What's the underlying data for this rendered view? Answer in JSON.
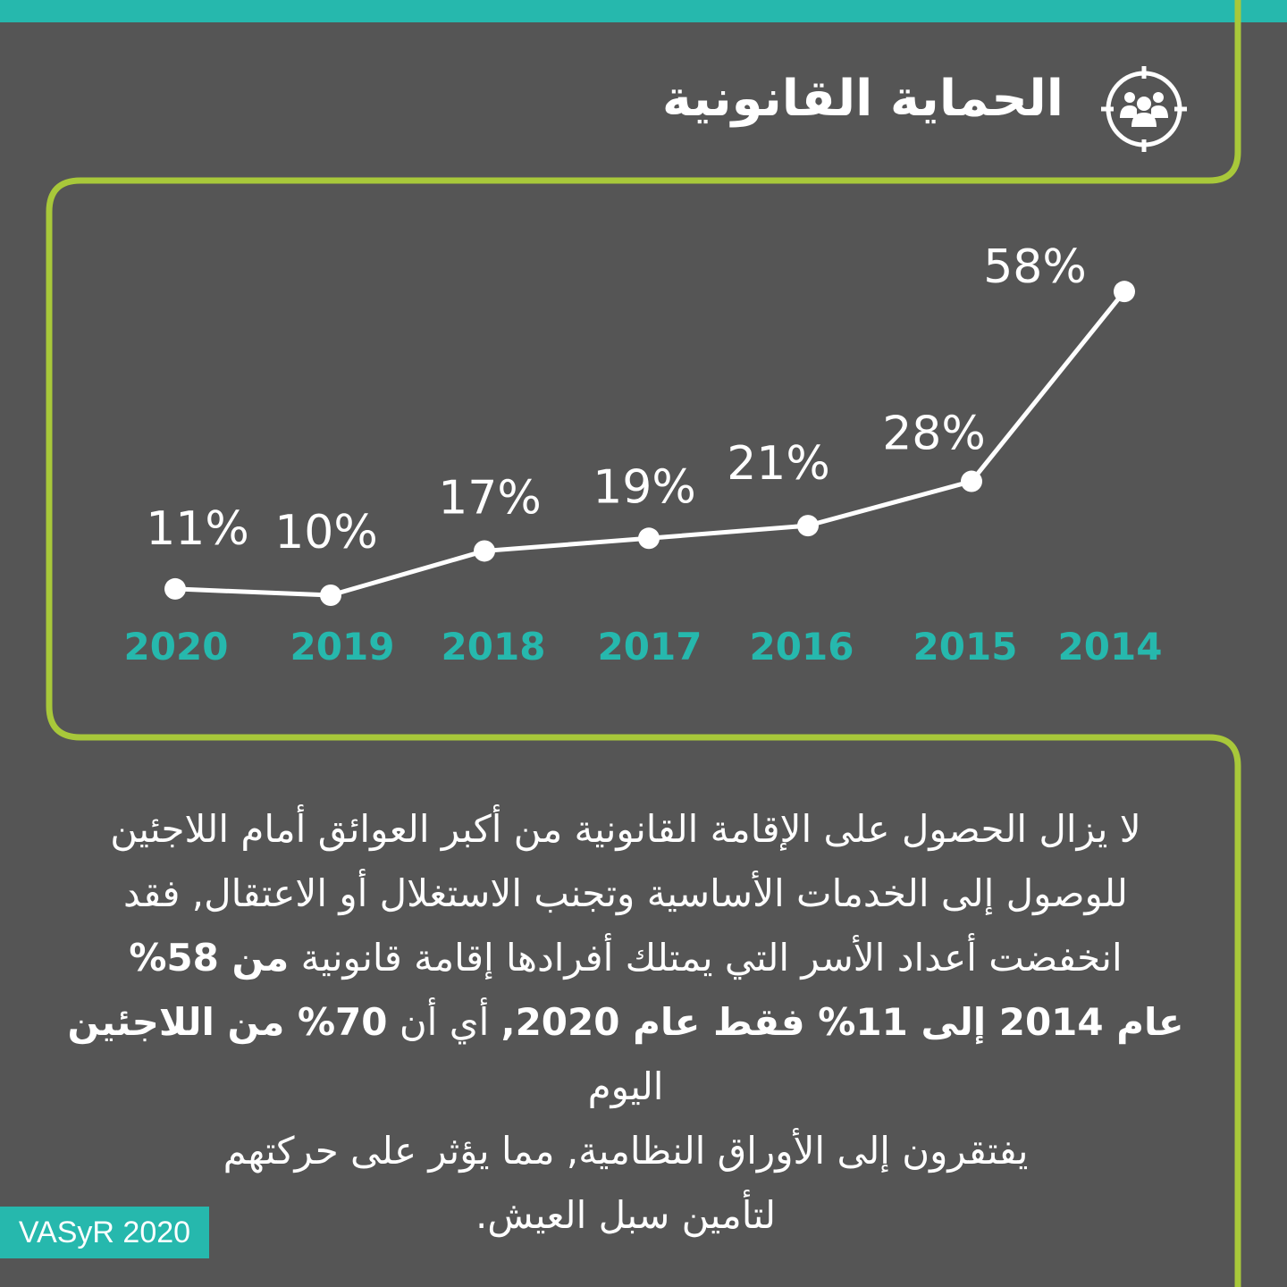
{
  "header": {
    "title": "الحماية القانونية",
    "icon": "group-target-icon"
  },
  "colors": {
    "background": "#555555",
    "accent_teal": "#26b8ad",
    "accent_green": "#a8c83a",
    "line": "#ffffff"
  },
  "chart_data": {
    "type": "line",
    "x": [
      "2020",
      "2019",
      "2018",
      "2017",
      "2016",
      "2015",
      "2014"
    ],
    "values": [
      11,
      10,
      17,
      19,
      21,
      28,
      58
    ],
    "value_labels": [
      "11%",
      "10%",
      "17%",
      "19%",
      "21%",
      "28%",
      "58%"
    ],
    "unit": "%",
    "grid": false,
    "legend": "none"
  },
  "body": {
    "line1": "لا يزال الحصول على الإقامة القانونية من أكبر العوائق أمام اللاجئين",
    "line2": "للوصول إلى الخدمات الأساسية وتجنب الاستغلال أو الاعتقال, فقد",
    "line3_a": "انخفضت أعداد الأسر التي يمتلك أفرادها إقامة قانونية ",
    "line3_b": "من 58%",
    "line4_a": "عام 2014 إلى 11% فقط عام 2020,",
    "line4_b": " أي أن ",
    "line4_c": "70% من اللاجئين",
    "line4_d": " اليوم",
    "line5": "يفتقرون إلى الأوراق النظامية, مما يؤثر على حركتهم",
    "line6": "لتأمين سبل العيش."
  },
  "source": "VASyR 2020"
}
